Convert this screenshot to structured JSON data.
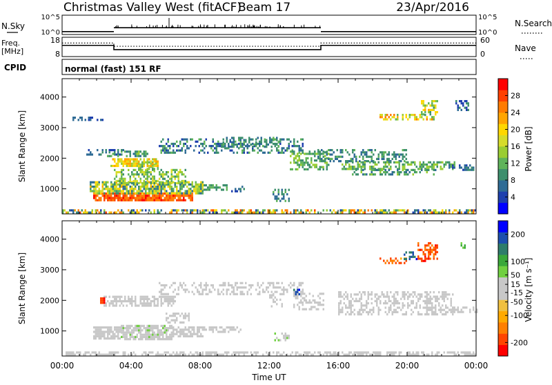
{
  "header": {
    "station": "Christmas Valley West (fitACF)",
    "beam": "Beam 17",
    "date": "23/Apr/2016"
  },
  "top_panels": {
    "nsky": {
      "label": "N.Sky",
      "right_label": "N.Search",
      "left_ticks": [
        "10^5",
        "10^0"
      ],
      "right_ticks": [
        "10^5",
        "10^0"
      ],
      "baseline_segments": [
        [
          0,
          3,
          0.15
        ],
        [
          3,
          15,
          0.35
        ],
        [
          15,
          24,
          0.15
        ]
      ]
    },
    "freq": {
      "label_top": "Freq.",
      "label_bottom": "[MHz]",
      "right_label": "Nave",
      "left_ticks": [
        "18",
        "8"
      ],
      "right_ticks": [
        "60",
        "0"
      ],
      "freq_steps": [
        [
          0,
          3,
          13.8
        ],
        [
          3,
          15,
          11.6
        ],
        [
          15,
          24,
          13.8
        ]
      ],
      "nave_steps": [
        [
          0,
          3,
          42
        ],
        [
          3,
          15,
          32
        ],
        [
          15,
          24,
          42
        ]
      ]
    },
    "cpid": {
      "label": "CPID",
      "text": "normal (fast) 151 RF"
    }
  },
  "chart_data": [
    {
      "type": "heatmap",
      "name": "power",
      "xlabel": "",
      "ylabel": "Slant Range [km]",
      "xlim": [
        0,
        24
      ],
      "ylim": [
        180,
        4600
      ],
      "yticks": [
        "1000",
        "2000",
        "3000",
        "4000"
      ],
      "ytick_values": [
        1000,
        2000,
        3000,
        4000
      ],
      "colorbar": {
        "label": "Power [dB]",
        "ticks": [
          "4",
          "8",
          "12",
          "16",
          "20",
          "24",
          "28"
        ],
        "tick_values": [
          4,
          8,
          12,
          16,
          20,
          24,
          28
        ],
        "range": [
          0,
          32
        ],
        "colors": [
          "#0000ff",
          "#1d3fae",
          "#2e6b95",
          "#3d8f6d",
          "#5fb35a",
          "#9acd32",
          "#d6dc2a",
          "#ffd700",
          "#ffa500",
          "#ff7b00",
          "#ff4000",
          "#ff0000"
        ]
      },
      "regions": [
        {
          "t": [
            0.0,
            24.0
          ],
          "r": [
            200,
            330
          ],
          "v": [
            3,
            28
          ],
          "d": 0.55
        },
        {
          "t": [
            1.8,
            7.6
          ],
          "r": [
            620,
            880
          ],
          "v": [
            24,
            30
          ],
          "d": 0.9
        },
        {
          "t": [
            1.6,
            8.2
          ],
          "r": [
            850,
            1250
          ],
          "v": [
            6,
            22
          ],
          "d": 0.75
        },
        {
          "t": [
            3.0,
            7.2
          ],
          "r": [
            1200,
            1650
          ],
          "v": [
            8,
            18
          ],
          "d": 0.55
        },
        {
          "t": [
            4.4,
            5.6
          ],
          "r": [
            1600,
            1900
          ],
          "v": [
            10,
            16
          ],
          "d": 0.6
        },
        {
          "t": [
            2.8,
            5.6
          ],
          "r": [
            1750,
            2000
          ],
          "v": [
            14,
            24
          ],
          "d": 0.8
        },
        {
          "t": [
            2.6,
            5.0
          ],
          "r": [
            2050,
            2250
          ],
          "v": [
            6,
            14
          ],
          "d": 0.5
        },
        {
          "t": [
            1.4,
            3.6
          ],
          "r": [
            2150,
            2300
          ],
          "v": [
            4,
            10
          ],
          "d": 0.45
        },
        {
          "t": [
            0.4,
            2.4
          ],
          "r": [
            3280,
            3360
          ],
          "v": [
            4,
            8
          ],
          "d": 0.45
        },
        {
          "t": [
            5.6,
            14.0
          ],
          "r": [
            2200,
            2650
          ],
          "v": [
            4,
            12
          ],
          "d": 0.35
        },
        {
          "t": [
            9.2,
            12.6
          ],
          "r": [
            2350,
            2700
          ],
          "v": [
            6,
            12
          ],
          "d": 0.4
        },
        {
          "t": [
            12.2,
            13.2
          ],
          "r": [
            600,
            1000
          ],
          "v": [
            6,
            12
          ],
          "d": 0.35
        },
        {
          "t": [
            13.2,
            15.4
          ],
          "r": [
            1650,
            2250
          ],
          "v": [
            8,
            16
          ],
          "d": 0.45
        },
        {
          "t": [
            8.2,
            9.6
          ],
          "r": [
            1000,
            1150
          ],
          "v": [
            8,
            12
          ],
          "d": 0.6
        },
        {
          "t": [
            9.8,
            10.6
          ],
          "r": [
            950,
            1100
          ],
          "v": [
            4,
            10
          ],
          "d": 0.5
        },
        {
          "t": [
            14.8,
            20.0
          ],
          "r": [
            1900,
            2300
          ],
          "v": [
            6,
            12
          ],
          "d": 0.45
        },
        {
          "t": [
            16.2,
            22.8
          ],
          "r": [
            1650,
            1900
          ],
          "v": [
            8,
            16
          ],
          "d": 0.55
        },
        {
          "t": [
            16.8,
            21.8
          ],
          "r": [
            1450,
            1650
          ],
          "v": [
            6,
            14
          ],
          "d": 0.45
        },
        {
          "t": [
            22.4,
            24.0
          ],
          "r": [
            1600,
            1800
          ],
          "v": [
            4,
            10
          ],
          "d": 0.45
        },
        {
          "t": [
            18.4,
            21.6
          ],
          "r": [
            3250,
            3450
          ],
          "v": [
            10,
            26
          ],
          "d": 0.55
        },
        {
          "t": [
            20.8,
            21.8
          ],
          "r": [
            3450,
            3900
          ],
          "v": [
            10,
            22
          ],
          "d": 0.5
        },
        {
          "t": [
            22.8,
            23.6
          ],
          "r": [
            3600,
            3900
          ],
          "v": [
            4,
            10
          ],
          "d": 0.4
        }
      ]
    },
    {
      "type": "heatmap",
      "name": "velocity",
      "xlabel": "Time UT",
      "ylabel": "Slant Range [km]",
      "xlim": [
        0,
        24
      ],
      "ylim": [
        180,
        4600
      ],
      "xticks": [
        "00:00",
        "04:00",
        "08:00",
        "12:00",
        "16:00",
        "20:00",
        "00:00"
      ],
      "xtick_values": [
        0,
        4,
        8,
        12,
        16,
        20,
        24
      ],
      "yticks": [
        "1000",
        "2000",
        "3000",
        "4000"
      ],
      "ytick_values": [
        1000,
        2000,
        3000,
        4000
      ],
      "colorbar": {
        "label": "Velocity [m s⁻¹]",
        "ticks": [
          "-200",
          "-100",
          "-50",
          "-15",
          "15",
          "50",
          "100",
          "200"
        ],
        "tick_values": [
          -200,
          -100,
          -50,
          -15,
          15,
          50,
          100,
          200
        ],
        "range": [
          -250,
          250
        ],
        "colors": [
          "#ff0000",
          "#ff4500",
          "#ff7f00",
          "#ffaa00",
          "#f0c040",
          "#c8c8c8",
          "#c8c8c8",
          "#70d040",
          "#3aa83a",
          "#2e7d6b",
          "#1d4fae",
          "#0000ff"
        ]
      },
      "regions": [
        {
          "t": [
            0.0,
            24.0
          ],
          "r": [
            200,
            330
          ],
          "v": [
            -40,
            -15
          ],
          "d": 0.55
        },
        {
          "t": [
            1.8,
            3.4
          ],
          "r": [
            750,
            1150
          ],
          "v": [
            -40,
            -20
          ],
          "d": 0.75
        },
        {
          "t": [
            3.4,
            6.4
          ],
          "r": [
            750,
            1200
          ],
          "v": [
            20,
            45
          ],
          "d": 0.8
        },
        {
          "t": [
            6.4,
            8.2
          ],
          "r": [
            800,
            1150
          ],
          "v": [
            -10,
            10
          ],
          "d": 0.7
        },
        {
          "t": [
            8.2,
            10.4
          ],
          "r": [
            950,
            1150
          ],
          "v": [
            -10,
            10
          ],
          "d": 0.6
        },
        {
          "t": [
            12.2,
            13.2
          ],
          "r": [
            700,
            950
          ],
          "v": [
            20,
            45
          ],
          "d": 0.35
        },
        {
          "t": [
            2.4,
            6.6
          ],
          "r": [
            1800,
            2150
          ],
          "v": [
            -10,
            10
          ],
          "d": 0.65
        },
        {
          "t": [
            6.0,
            7.4
          ],
          "r": [
            1300,
            1600
          ],
          "v": [
            20,
            40
          ],
          "d": 0.5
        },
        {
          "t": [
            2.2,
            2.5
          ],
          "r": [
            1950,
            2100
          ],
          "v": [
            -220,
            -180
          ],
          "d": 0.8
        },
        {
          "t": [
            5.6,
            14.0
          ],
          "r": [
            2200,
            2600
          ],
          "v": [
            -10,
            10
          ],
          "d": 0.35
        },
        {
          "t": [
            13.4,
            15.2
          ],
          "r": [
            1700,
            2250
          ],
          "v": [
            -10,
            10
          ],
          "d": 0.45
        },
        {
          "t": [
            12.0,
            12.8
          ],
          "r": [
            1800,
            2200
          ],
          "v": [
            20,
            45
          ],
          "d": 0.45
        },
        {
          "t": [
            13.4,
            13.8
          ],
          "r": [
            2200,
            2450
          ],
          "v": [
            160,
            220
          ],
          "d": 0.5
        },
        {
          "t": [
            16.0,
            22.6
          ],
          "r": [
            1550,
            2300
          ],
          "v": [
            -10,
            10
          ],
          "d": 0.45
        },
        {
          "t": [
            22.4,
            24.0
          ],
          "r": [
            1600,
            1800
          ],
          "v": [
            -10,
            10
          ],
          "d": 0.4
        },
        {
          "t": [
            18.4,
            20.0
          ],
          "r": [
            3250,
            3400
          ],
          "v": [
            -200,
            -120
          ],
          "d": 0.55
        },
        {
          "t": [
            19.8,
            20.6
          ],
          "r": [
            3350,
            3600
          ],
          "v": [
            130,
            210
          ],
          "d": 0.45
        },
        {
          "t": [
            20.6,
            21.8
          ],
          "r": [
            3300,
            3900
          ],
          "v": [
            -220,
            -140
          ],
          "d": 0.5
        },
        {
          "t": [
            23.0,
            23.6
          ],
          "r": [
            3700,
            3900
          ],
          "v": [
            60,
            120
          ],
          "d": 0.4
        }
      ]
    }
  ]
}
